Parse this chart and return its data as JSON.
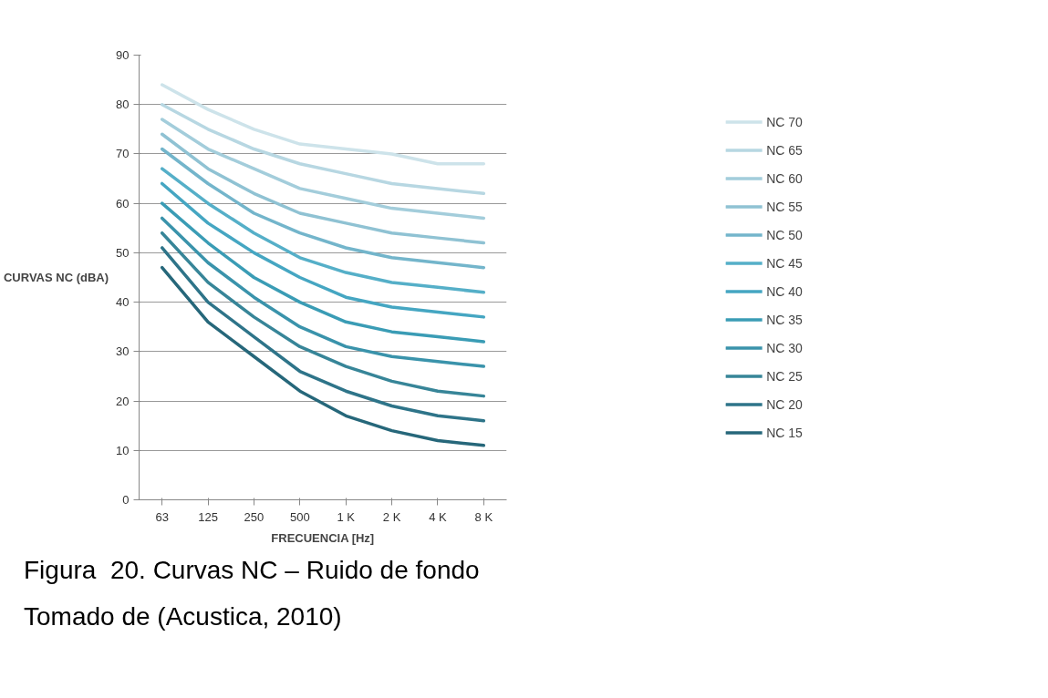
{
  "chart_data": {
    "type": "line",
    "xlabel": "FRECUENCIA [Hz]",
    "ylabel": "CURVAS NC (dBA)",
    "categories": [
      "63",
      "125",
      "250",
      "500",
      "1 K",
      "2 K",
      "4 K",
      "8 K"
    ],
    "ylim": [
      0,
      90
    ],
    "yticks": [
      0,
      10,
      20,
      30,
      40,
      50,
      60,
      70,
      80,
      90
    ],
    "grid": "y",
    "legend": "right",
    "marker": "none",
    "line_style": "solid",
    "series": [
      {
        "name": "NC 70",
        "color": "#cde3ea",
        "values": [
          84,
          79,
          75,
          72,
          71,
          70,
          68,
          68
        ]
      },
      {
        "name": "NC 65",
        "color": "#b7d7e2",
        "values": [
          80,
          75,
          71,
          68,
          66,
          64,
          63,
          62
        ]
      },
      {
        "name": "NC 60",
        "color": "#a3cddb",
        "values": [
          77,
          71,
          67,
          63,
          61,
          59,
          58,
          57
        ]
      },
      {
        "name": "NC 55",
        "color": "#8fc2d3",
        "values": [
          74,
          67,
          62,
          58,
          56,
          54,
          53,
          52
        ]
      },
      {
        "name": "NC 50",
        "color": "#73b5cb",
        "values": [
          71,
          64,
          58,
          54,
          51,
          49,
          48,
          47
        ]
      },
      {
        "name": "NC 45",
        "color": "#55afc8",
        "values": [
          67,
          60,
          54,
          49,
          46,
          44,
          43,
          42
        ]
      },
      {
        "name": "NC 40",
        "color": "#45a6c2",
        "values": [
          64,
          56,
          50,
          45,
          41,
          39,
          38,
          37
        ]
      },
      {
        "name": "NC 35",
        "color": "#3a9cb5",
        "values": [
          60,
          52,
          45,
          40,
          36,
          34,
          33,
          32
        ]
      },
      {
        "name": "NC 30",
        "color": "#3a93ab",
        "values": [
          57,
          48,
          41,
          35,
          31,
          29,
          28,
          27
        ]
      },
      {
        "name": "NC 25",
        "color": "#378598",
        "values": [
          54,
          44,
          37,
          31,
          27,
          24,
          22,
          21
        ]
      },
      {
        "name": "NC 20",
        "color": "#2e7489",
        "values": [
          51,
          40,
          33,
          26,
          22,
          19,
          17,
          16
        ]
      },
      {
        "name": "NC 15",
        "color": "#26677a",
        "values": [
          47,
          36,
          29,
          22,
          17,
          14,
          12,
          11
        ]
      }
    ],
    "annotations": [
      "Figura  20. Curvas NC – Ruido de fondo",
      "Tomado de (Acustica, 2010)"
    ]
  }
}
